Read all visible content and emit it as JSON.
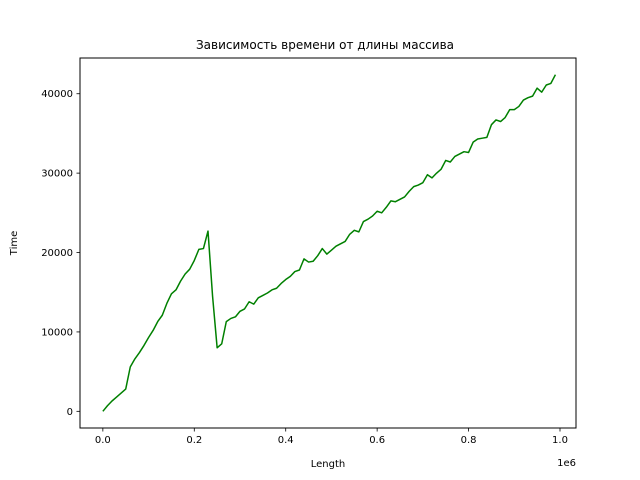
{
  "chart_data": {
    "type": "line",
    "title": "Зависимость времени от длины массива",
    "xlabel": "Length",
    "ylabel": "Time",
    "x_offset_text": "1e6",
    "xlim": [
      -0.05,
      1.035
    ],
    "ylim": [
      -2100,
      44500
    ],
    "x_ticks": [
      0.0,
      0.2,
      0.4,
      0.6,
      0.8,
      1.0
    ],
    "x_tick_labels": [
      "0.0",
      "0.2",
      "0.4",
      "0.6",
      "0.8",
      "1.0"
    ],
    "y_ticks": [
      0,
      10000,
      20000,
      30000,
      40000
    ],
    "y_tick_labels": [
      "0",
      "10000",
      "20000",
      "30000",
      "40000"
    ],
    "grid": false,
    "series": [
      {
        "color": "#008000",
        "x": [
          0.0,
          0.01,
          0.02,
          0.03,
          0.04,
          0.05,
          0.06,
          0.07,
          0.08,
          0.09,
          0.1,
          0.11,
          0.12,
          0.13,
          0.14,
          0.15,
          0.16,
          0.17,
          0.18,
          0.19,
          0.2,
          0.21,
          0.22,
          0.23,
          0.24,
          0.25,
          0.26,
          0.27,
          0.28,
          0.29,
          0.3,
          0.31,
          0.32,
          0.33,
          0.34,
          0.35,
          0.36,
          0.37,
          0.38,
          0.39,
          0.4,
          0.41,
          0.42,
          0.43,
          0.44,
          0.45,
          0.46,
          0.47,
          0.48,
          0.49,
          0.5,
          0.51,
          0.52,
          0.53,
          0.54,
          0.55,
          0.56,
          0.57,
          0.58,
          0.59,
          0.6,
          0.61,
          0.62,
          0.63,
          0.64,
          0.65,
          0.66,
          0.67,
          0.68,
          0.69,
          0.7,
          0.71,
          0.72,
          0.73,
          0.74,
          0.75,
          0.76,
          0.77,
          0.78,
          0.79,
          0.8,
          0.81,
          0.82,
          0.83,
          0.84,
          0.85,
          0.86,
          0.87,
          0.88,
          0.89,
          0.9,
          0.91,
          0.92,
          0.93,
          0.94,
          0.95,
          0.96,
          0.97,
          0.98,
          0.99
        ],
        "y": [
          0,
          700,
          1300,
          1800,
          2300,
          2800,
          5600,
          6600,
          7400,
          8300,
          9300,
          10200,
          11300,
          12100,
          13600,
          14800,
          15300,
          16400,
          17300,
          17900,
          19000,
          20400,
          20500,
          22700,
          14500,
          8000,
          8500,
          11300,
          11700,
          11900,
          12600,
          12900,
          13800,
          13500,
          14300,
          14600,
          14900,
          15300,
          15500,
          16100,
          16600,
          17000,
          17600,
          17800,
          19200,
          18800,
          18900,
          19600,
          20500,
          19800,
          20300,
          20800,
          21100,
          21400,
          22300,
          22800,
          22600,
          23900,
          24200,
          24600,
          25200,
          25000,
          25700,
          26500,
          26400,
          26700,
          27000,
          27700,
          28300,
          28500,
          28800,
          29800,
          29400,
          30000,
          30500,
          31600,
          31400,
          32100,
          32400,
          32700,
          32600,
          33900,
          34300,
          34400,
          34500,
          36100,
          36700,
          36500,
          37000,
          38000,
          38000,
          38400,
          39200,
          39500,
          39700,
          40700,
          40200,
          41100,
          41300,
          42400
        ]
      }
    ]
  }
}
